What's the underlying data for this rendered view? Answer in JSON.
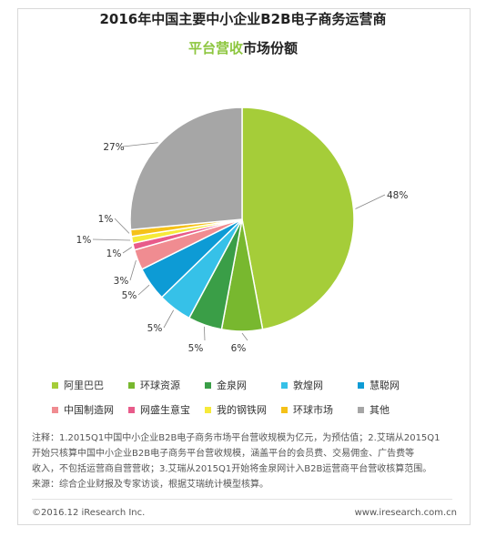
{
  "title_line1": "2016年中国主要中小企业B2B电子商务运营商",
  "title_line2_highlight": "平台营收",
  "title_line2_rest": "市场份额",
  "notes": [
    "注释：1.2015Q1中国中小企业B2B电子商务市场平台营收规模为亿元，为预估值；2.艾瑞从2015Q1",
    "开始只核算中国中小企业B2B电子商务平台营收规模，涵盖平台的会员费、交易佣金、广告费等",
    "收入，不包括运营商自营营收；3.艾瑞从2015Q1开始将金泉网计入B2B运营商平台营收核算范围。",
    "来源：综合企业财报及专家访谈，根据艾瑞统计模型核算。"
  ],
  "footer_left": "©2016.12 iResearch Inc.",
  "footer_right": "www.iresearch.com.cn",
  "chart_data": {
    "type": "pie",
    "title": "2016年中国主要中小企业B2B电子商务运营商平台营收市场份额",
    "categories": [
      "阿里巴巴",
      "环球资源",
      "金泉网",
      "敦煌网",
      "慧聪网",
      "中国制造网",
      "网盛生意宝",
      "我的钢铁网",
      "环球市场",
      "其他"
    ],
    "values": [
      48,
      6,
      5,
      5,
      5,
      3,
      1,
      1,
      1,
      27
    ],
    "labels": [
      "48%",
      "6%",
      "5%",
      "5%",
      "5%",
      "3%",
      "1%",
      "1%",
      "1%",
      "27%"
    ],
    "colors": [
      "#a5cd39",
      "#78b82f",
      "#3a9e47",
      "#36c1e8",
      "#0d9bd5",
      "#f08c91",
      "#e85b8a",
      "#f6ea3a",
      "#f5c118",
      "#a6a6a6"
    ],
    "legend_position": "bottom"
  }
}
